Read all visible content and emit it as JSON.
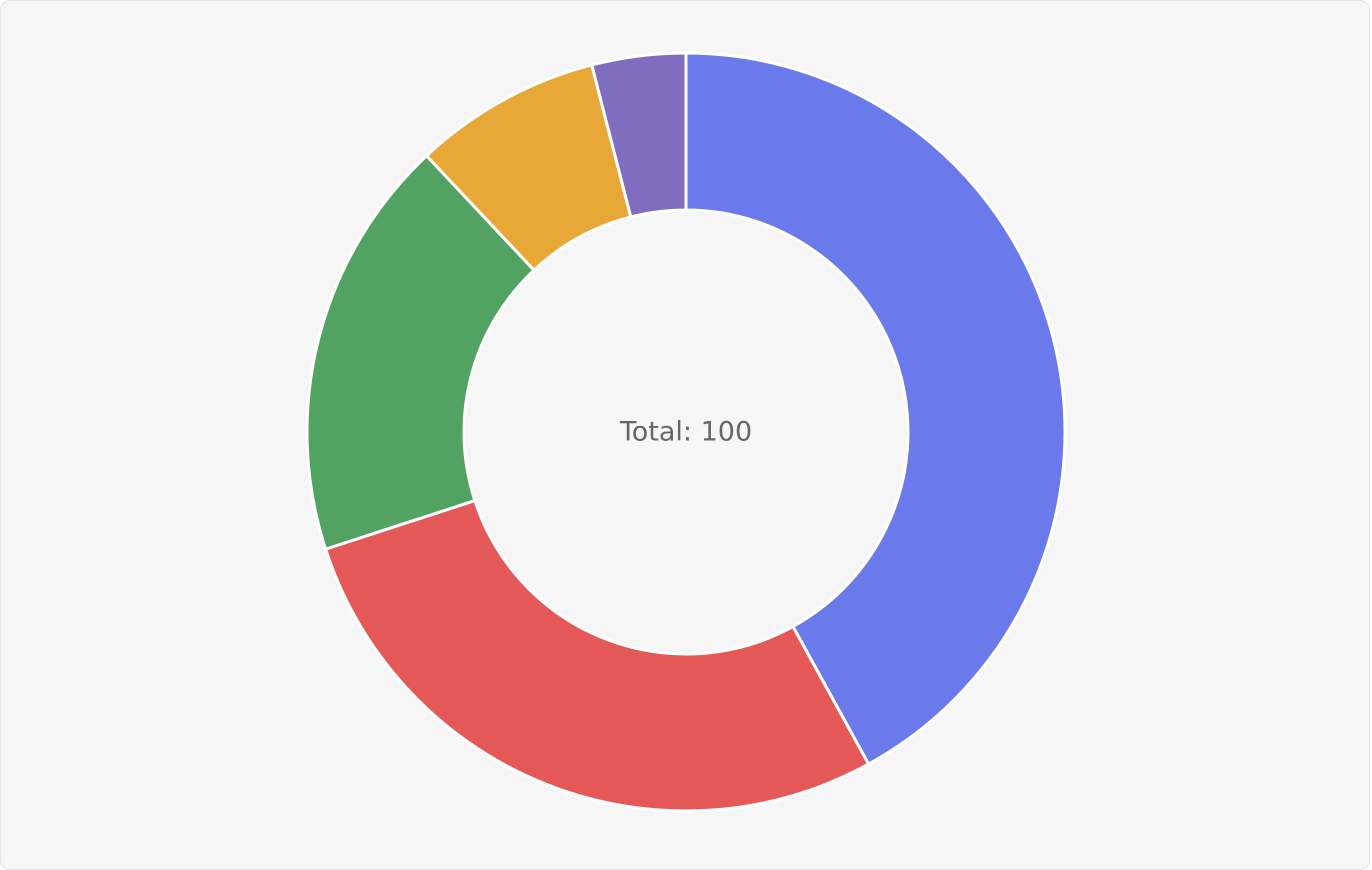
{
  "chart_data": {
    "type": "donut",
    "center_label": "Total: 100",
    "values": [
      42,
      28,
      18,
      8,
      4
    ],
    "colors": [
      "#6a7aea",
      "#e45958",
      "#52a362",
      "#e8a838",
      "#806dbf"
    ]
  }
}
